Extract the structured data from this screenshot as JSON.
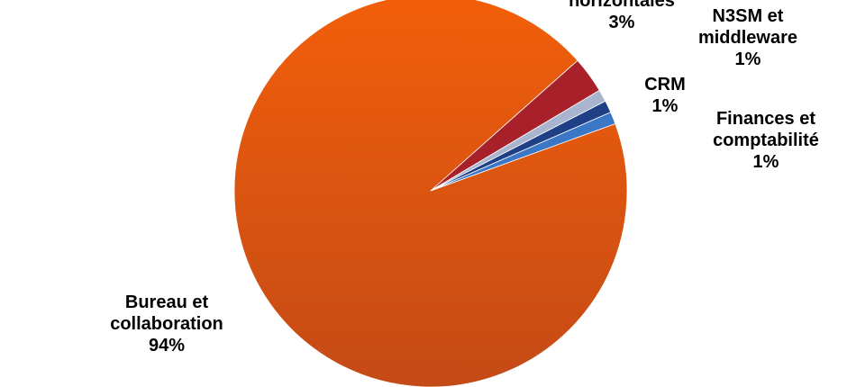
{
  "chart_data": {
    "type": "pie",
    "title": "",
    "slices": [
      {
        "label_lines": [
          "Bureau et",
          "collaboration"
        ],
        "percent_label": "94%",
        "value": 94,
        "color": "#E2590C"
      },
      {
        "label_lines": [
          "horizontales"
        ],
        "percent_label": "3%",
        "value": 3,
        "color": "#A8202A"
      },
      {
        "label_lines": [
          "N3SM et",
          "middleware"
        ],
        "percent_label": "1%",
        "value": 1,
        "color": "#A9B4CF"
      },
      {
        "label_lines": [
          "CRM"
        ],
        "percent_label": "1%",
        "value": 1,
        "color": "#1F3F86"
      },
      {
        "label_lines": [
          "Finances et",
          "comptabilité"
        ],
        "percent_label": "1%",
        "value": 1,
        "color": "#3C77C6"
      }
    ]
  }
}
